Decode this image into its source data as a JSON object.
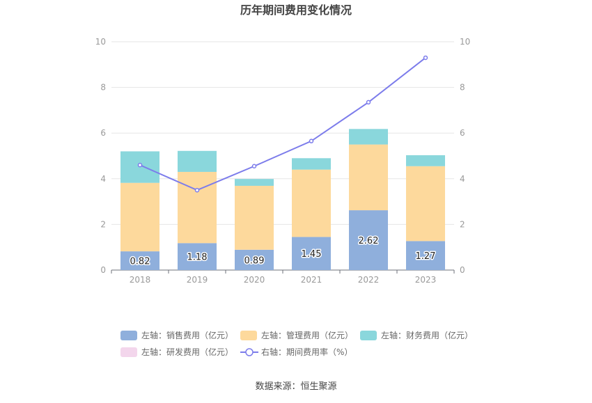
{
  "chart_data": {
    "type": "bar",
    "title": "历年期间费用变化情况",
    "categories": [
      "2018",
      "2019",
      "2020",
      "2021",
      "2022",
      "2023"
    ],
    "stacked": true,
    "left_axis": {
      "min": 0,
      "max": 10,
      "ticks": [
        "0",
        "2",
        "4",
        "6",
        "8",
        "10"
      ]
    },
    "right_axis": {
      "min": 0,
      "max": 10,
      "ticks": [
        "0",
        "2",
        "4",
        "6",
        "8",
        "10"
      ]
    },
    "grid": true,
    "legend_position": "bottom",
    "series": [
      {
        "name": "左轴：销售费用（亿元）",
        "type": "bar",
        "axis": "left",
        "color": "#8fafdc",
        "values": [
          0.82,
          1.18,
          0.89,
          1.45,
          2.62,
          1.27
        ],
        "labels": [
          "0.82",
          "1.18",
          "0.89",
          "1.45",
          "2.62",
          "1.27"
        ]
      },
      {
        "name": "左轴：管理费用（亿元）",
        "type": "bar",
        "axis": "left",
        "color": "#fdd99c",
        "values": [
          3.0,
          3.12,
          2.8,
          2.95,
          2.88,
          3.28
        ]
      },
      {
        "name": "左轴：财务费用（亿元）",
        "type": "bar",
        "axis": "left",
        "color": "#8ad7dc",
        "values": [
          1.38,
          0.92,
          0.3,
          0.5,
          0.68,
          0.48
        ]
      },
      {
        "name": "左轴：研发费用（亿元）",
        "type": "bar",
        "axis": "left",
        "color": "#f3d6ec",
        "values": [
          0,
          0,
          0,
          0,
          0,
          0
        ]
      },
      {
        "name": "右轴：期间费用率（%）",
        "type": "line",
        "axis": "right",
        "color": "#7c7ceb",
        "values": [
          4.6,
          3.5,
          4.55,
          5.65,
          7.35,
          9.3
        ]
      }
    ],
    "source": "数据来源：恒生聚源"
  },
  "colors": {
    "axis_text": "#999999",
    "grid": "#e6e6e6",
    "title": "#444444",
    "legend_text": "#666666"
  }
}
